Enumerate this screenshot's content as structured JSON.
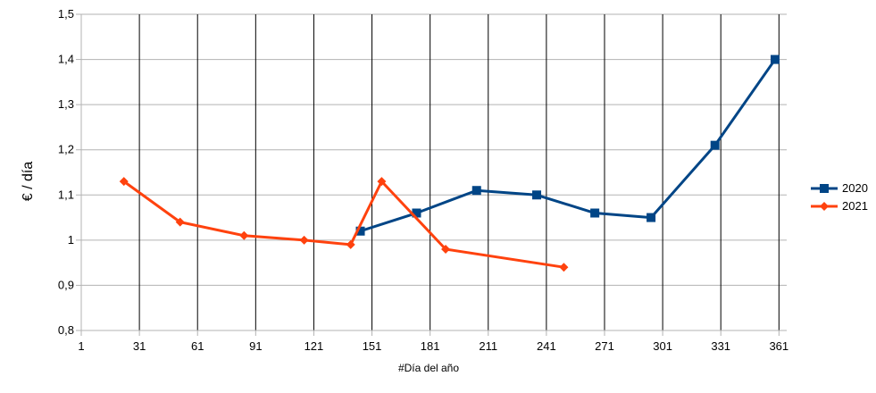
{
  "chart_data": {
    "type": "line",
    "title": "",
    "xlabel": "#Día del año",
    "ylabel": "€ / día",
    "xlim": [
      1,
      365
    ],
    "ylim": [
      0.8,
      1.5
    ],
    "x_ticks": [
      1,
      31,
      61,
      91,
      121,
      151,
      181,
      211,
      241,
      271,
      301,
      331,
      361
    ],
    "x_tick_labels": [
      "1",
      "31",
      "61",
      "91",
      "121",
      "151",
      "181",
      "211",
      "241",
      "271",
      "301",
      "331",
      "361"
    ],
    "y_ticks": [
      0.8,
      0.9,
      1.0,
      1.1,
      1.2,
      1.3,
      1.4,
      1.5
    ],
    "y_tick_labels": [
      "0,8",
      "0,9",
      "1",
      "1,1",
      "1,2",
      "1,3",
      "1,4",
      "1,5"
    ],
    "grid": {
      "vertical": true,
      "horizontal": true
    },
    "legend_position": "right",
    "series": [
      {
        "name": "2020",
        "color": "#004586",
        "marker": "square",
        "x": [
          145,
          174,
          205,
          236,
          266,
          295,
          328,
          359
        ],
        "values": [
          1.02,
          1.06,
          1.11,
          1.1,
          1.06,
          1.05,
          1.21,
          1.4
        ]
      },
      {
        "name": "2021",
        "color": "#ff420e",
        "marker": "diamond",
        "x": [
          23,
          52,
          85,
          116,
          140,
          156,
          189,
          250
        ],
        "values": [
          1.13,
          1.04,
          1.01,
          1.0,
          0.99,
          1.13,
          0.98,
          0.94
        ]
      }
    ]
  }
}
